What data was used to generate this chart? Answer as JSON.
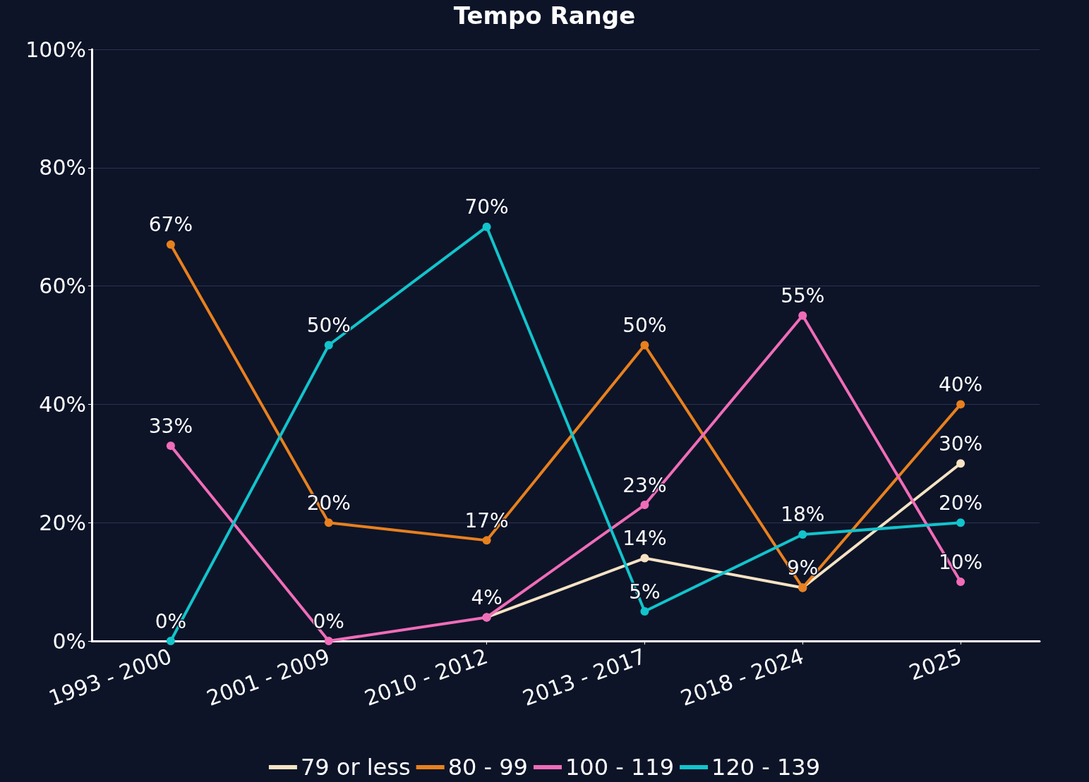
{
  "chart_data": {
    "type": "line",
    "title": "Tempo Range",
    "categories": [
      "1993 - 2000",
      "2001 - 2009",
      "2010 - 2012",
      "2013 - 2017",
      "2018 - 2024",
      "2025"
    ],
    "series": [
      {
        "name": "79 or less",
        "color": "#f5e3c3",
        "values": [
          null,
          null,
          4,
          14,
          9,
          30
        ],
        "value_labels": [
          null,
          null,
          "4%",
          "14%",
          "9%",
          "30%"
        ]
      },
      {
        "name": "80 - 99",
        "color": "#e8801e",
        "values": [
          67,
          20,
          17,
          50,
          9,
          40
        ],
        "value_labels": [
          "67%",
          "20%",
          "17%",
          "50%",
          null,
          "40%"
        ]
      },
      {
        "name": "100 - 119",
        "color": "#f06cb8",
        "values": [
          33,
          0,
          4,
          23,
          55,
          10
        ],
        "value_labels": [
          "33%",
          "0%",
          null,
          "23%",
          "55%",
          "10%"
        ]
      },
      {
        "name": "120 - 139",
        "color": "#12c4cc",
        "values": [
          0,
          50,
          70,
          5,
          18,
          20
        ],
        "value_labels": [
          "0%",
          "50%",
          "70%",
          "5%",
          "18%",
          "20%"
        ]
      }
    ],
    "ylim": [
      0,
      100
    ],
    "yticks": [
      {
        "value": 0,
        "label": "0%"
      },
      {
        "value": 20,
        "label": "20%"
      },
      {
        "value": 40,
        "label": "40%"
      },
      {
        "value": 60,
        "label": "60%"
      },
      {
        "value": 80,
        "label": "80%"
      },
      {
        "value": 100,
        "label": "100%"
      }
    ],
    "grid": "y",
    "legend": "bottom",
    "marker": "circle",
    "line_style": "solid"
  }
}
